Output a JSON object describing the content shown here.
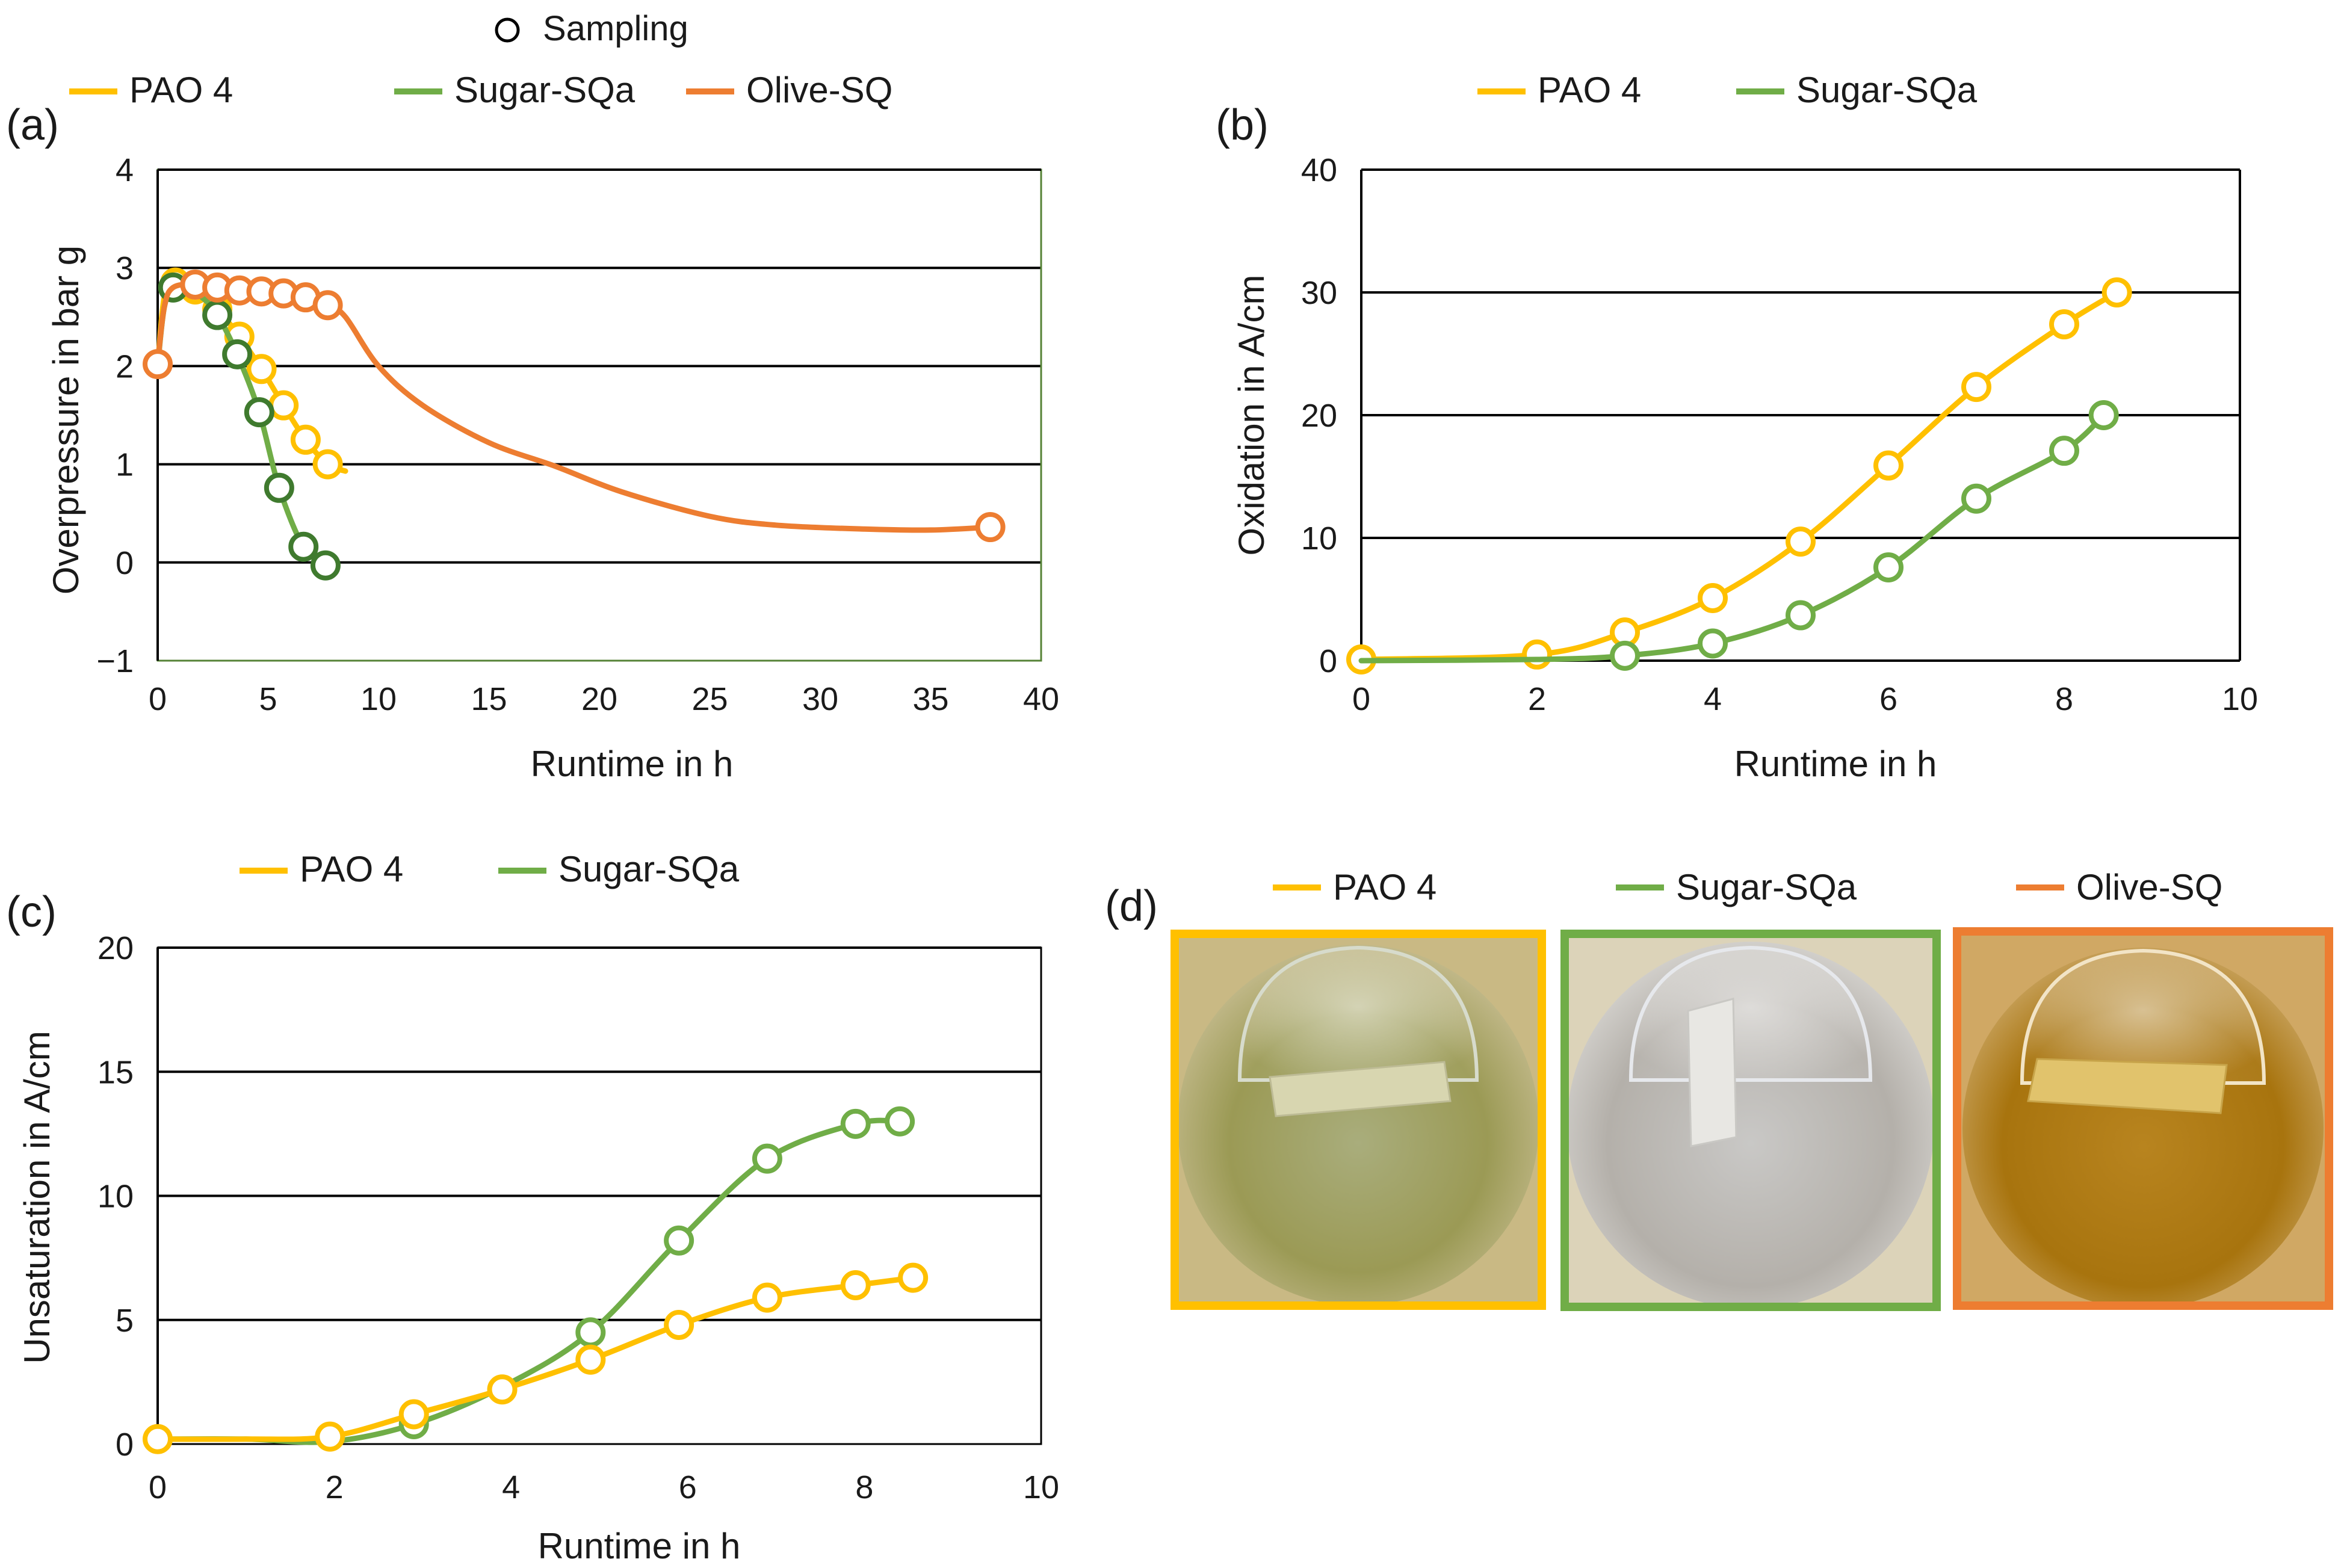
{
  "legend_sampling": "Sampling",
  "colors": {
    "PAO 4": "#FFC000",
    "Sugar-SQa": "#70AD47",
    "Olive-SQ": "#ED7D31",
    "Sugar-SQa-dark": "#3F7A2E"
  },
  "chart_data": [
    {
      "panel": "(a)",
      "type": "line",
      "xlabel": "Runtime in h",
      "ylabel": "Overpressure in bar g",
      "xlim": [
        0,
        40
      ],
      "ylim": [
        -1,
        4
      ],
      "xticks": [
        0,
        5,
        10,
        15,
        20,
        25,
        30,
        35,
        40
      ],
      "yticks": [
        -1,
        0,
        1,
        2,
        3,
        4
      ],
      "ytick_labels": [
        "−1",
        "0",
        "1",
        "2",
        "3",
        "4"
      ],
      "grid_y": [
        0,
        1,
        2,
        3
      ],
      "legend": [
        "PAO 4",
        "Sugar-SQa",
        "Olive-SQ"
      ],
      "series": [
        {
          "name": "PAO 4",
          "curve": [
            [
              0,
              2.0
            ],
            [
              0.3,
              2.7
            ],
            [
              0.8,
              2.85
            ],
            [
              1.7,
              2.78
            ],
            [
              2.7,
              2.58
            ],
            [
              3.7,
              2.3
            ],
            [
              4.7,
              1.97
            ],
            [
              5.7,
              1.6
            ],
            [
              6.7,
              1.25
            ],
            [
              7.7,
              1.0
            ],
            [
              8.5,
              0.93
            ]
          ],
          "samples": [
            [
              0.8,
              2.85
            ],
            [
              1.7,
              2.78
            ],
            [
              2.7,
              2.58
            ],
            [
              3.7,
              2.3
            ],
            [
              4.7,
              1.97
            ],
            [
              5.7,
              1.6
            ],
            [
              6.7,
              1.25
            ],
            [
              7.7,
              1.0
            ]
          ]
        },
        {
          "name": "Sugar-SQa",
          "curve": [
            [
              0,
              2.0
            ],
            [
              0.3,
              2.6
            ],
            [
              0.7,
              2.8
            ],
            [
              1.2,
              2.78
            ],
            [
              2.0,
              2.7
            ],
            [
              2.7,
              2.52
            ],
            [
              3.6,
              2.12
            ],
            [
              4.6,
              1.53
            ],
            [
              5.5,
              0.76
            ],
            [
              6.6,
              0.16
            ],
            [
              7.6,
              -0.03
            ]
          ],
          "samples": [
            [
              0.7,
              2.8
            ],
            [
              2.7,
              2.52
            ],
            [
              3.6,
              2.12
            ],
            [
              4.6,
              1.53
            ],
            [
              5.5,
              0.76
            ],
            [
              6.6,
              0.16
            ],
            [
              7.6,
              -0.03
            ]
          ]
        },
        {
          "name": "Olive-SQ",
          "curve": [
            [
              0,
              2.02
            ],
            [
              0.3,
              2.6
            ],
            [
              0.7,
              2.8
            ],
            [
              1.7,
              2.83
            ],
            [
              2.7,
              2.8
            ],
            [
              3.7,
              2.77
            ],
            [
              4.7,
              2.76
            ],
            [
              5.7,
              2.74
            ],
            [
              6.7,
              2.7
            ],
            [
              7.7,
              2.62
            ],
            [
              8.5,
              2.5
            ],
            [
              10,
              2.0
            ],
            [
              12,
              1.6
            ],
            [
              15,
              1.22
            ],
            [
              18,
              0.98
            ],
            [
              21,
              0.72
            ],
            [
              25,
              0.47
            ],
            [
              28,
              0.38
            ],
            [
              32,
              0.34
            ],
            [
              35,
              0.33
            ],
            [
              37.7,
              0.36
            ]
          ],
          "samples": [
            [
              0,
              2.02
            ],
            [
              1.7,
              2.83
            ],
            [
              2.7,
              2.8
            ],
            [
              3.7,
              2.77
            ],
            [
              4.7,
              2.76
            ],
            [
              5.7,
              2.74
            ],
            [
              6.7,
              2.7
            ],
            [
              7.7,
              2.62
            ],
            [
              37.7,
              0.36
            ]
          ]
        }
      ]
    },
    {
      "panel": "(b)",
      "type": "line",
      "xlabel": "Runtime in h",
      "ylabel": "Oxidation in A/cm",
      "xlim": [
        0,
        10
      ],
      "ylim": [
        0,
        40
      ],
      "xticks": [
        0,
        2,
        4,
        6,
        8,
        10
      ],
      "yticks": [
        0,
        10,
        20,
        30,
        40
      ],
      "grid_y": [
        10,
        20,
        30
      ],
      "legend": [
        "PAO 4",
        "Sugar-SQa"
      ],
      "series": [
        {
          "name": "PAO 4",
          "curve": [
            [
              0,
              0.1
            ],
            [
              2,
              0.5
            ],
            [
              3,
              2.3
            ],
            [
              4,
              5.1
            ],
            [
              5,
              9.7
            ],
            [
              6,
              15.9
            ],
            [
              7,
              22.3
            ],
            [
              8,
              27.4
            ],
            [
              8.6,
              30.0
            ]
          ],
          "samples": [
            [
              0,
              0.1
            ],
            [
              2,
              0.5
            ],
            [
              3,
              2.3
            ],
            [
              4,
              5.1
            ],
            [
              5,
              9.7
            ],
            [
              6,
              15.9
            ],
            [
              7,
              22.3
            ],
            [
              8,
              27.4
            ],
            [
              8.6,
              30.0
            ]
          ]
        },
        {
          "name": "Sugar-SQa",
          "curve": [
            [
              0,
              0.0
            ],
            [
              2,
              0.1
            ],
            [
              3,
              0.4
            ],
            [
              4,
              1.4
            ],
            [
              5,
              3.7
            ],
            [
              6,
              7.6
            ],
            [
              7,
              13.2
            ],
            [
              8,
              17.1
            ],
            [
              8.45,
              20.0
            ]
          ],
          "samples": [
            [
              3,
              0.4
            ],
            [
              4,
              1.4
            ],
            [
              5,
              3.7
            ],
            [
              6,
              7.6
            ],
            [
              7,
              13.2
            ],
            [
              8,
              17.1
            ],
            [
              8.45,
              20.0
            ]
          ]
        }
      ]
    },
    {
      "panel": "(c)",
      "type": "line",
      "xlabel": "Runtime in h",
      "ylabel": "Unsaturation in A/cm",
      "xlim": [
        0,
        10
      ],
      "ylim": [
        0,
        20
      ],
      "xticks": [
        0,
        2,
        4,
        6,
        8,
        10
      ],
      "yticks": [
        0,
        5,
        10,
        15,
        20
      ],
      "grid_y": [
        5,
        10,
        15
      ],
      "legend": [
        "PAO 4",
        "Sugar-SQa"
      ],
      "series": [
        {
          "name": "Sugar-SQa",
          "curve": [
            [
              0,
              0.2
            ],
            [
              1,
              0.2
            ],
            [
              1.95,
              0.1
            ],
            [
              2.9,
              0.8
            ],
            [
              3.9,
              2.3
            ],
            [
              4.9,
              4.5
            ],
            [
              5.9,
              8.2
            ],
            [
              6.9,
              11.5
            ],
            [
              7.9,
              12.9
            ],
            [
              8.4,
              13.0
            ]
          ],
          "samples": [
            [
              2.9,
              0.8
            ],
            [
              4.9,
              4.5
            ],
            [
              5.9,
              8.2
            ],
            [
              6.9,
              11.5
            ],
            [
              7.9,
              12.9
            ],
            [
              8.4,
              13.0
            ]
          ]
        },
        {
          "name": "PAO 4",
          "curve": [
            [
              0,
              0.2
            ],
            [
              1,
              0.2
            ],
            [
              1.95,
              0.3
            ],
            [
              2.9,
              1.2
            ],
            [
              3.9,
              2.2
            ],
            [
              4.9,
              3.4
            ],
            [
              5.9,
              4.8
            ],
            [
              6.9,
              5.9
            ],
            [
              7.9,
              6.4
            ],
            [
              8.55,
              6.7
            ]
          ],
          "samples": [
            [
              0,
              0.2
            ],
            [
              1.95,
              0.3
            ],
            [
              2.9,
              1.2
            ],
            [
              3.9,
              2.2
            ],
            [
              4.9,
              3.4
            ],
            [
              5.9,
              4.8
            ],
            [
              6.9,
              5.9
            ],
            [
              7.9,
              6.4
            ],
            [
              8.55,
              6.7
            ]
          ]
        }
      ]
    }
  ],
  "panel_d": {
    "label": "(d)",
    "legend": [
      "PAO 4",
      "Sugar-SQa",
      "Olive-SQ"
    ]
  }
}
